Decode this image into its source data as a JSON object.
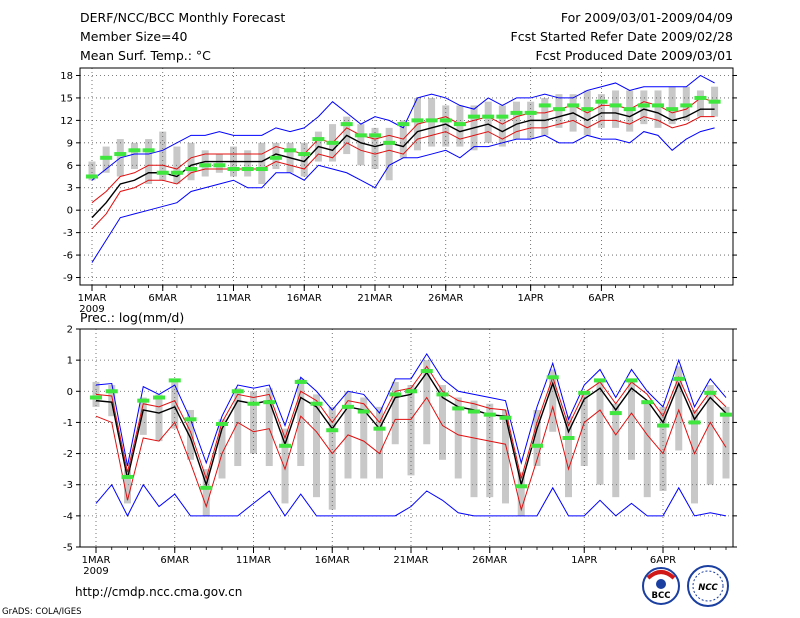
{
  "header": {
    "title": "DERF/NCC/BCC Monthly Forecast",
    "member_size": "Member Size=40",
    "variable": "Mean Surf. Temp.: °C",
    "period": "For 2009/03/01-2009/04/09",
    "start_date": "Fcst Started Refer Date 2009/02/28",
    "produced_date": "Fcst Produced Date 2009/03/01"
  },
  "precip_label": "Prec.: log(mm/d)",
  "footer": {
    "url": "http://cmdp.ncc.cma.gov.cn",
    "grads": "GrADS: COLA/IGES",
    "logo_bcc": "BCC",
    "logo_ncc": "NCC"
  },
  "colors": {
    "blue": "#0000ff",
    "red": "#e01010",
    "black": "#000000",
    "green": "#3ee63e",
    "box": "#c8c8c8",
    "grid": "#555555"
  },
  "chart_data": [
    {
      "type": "line",
      "name": "temperature",
      "title": "Mean Surf. Temp.: °C",
      "xlabel": "",
      "ylabel": "°C",
      "x_tick_labels": [
        "1MAR",
        "6MAR",
        "11MAR",
        "16MAR",
        "21MAR",
        "26MAR",
        "1APR",
        "6APR"
      ],
      "x_tick_days": [
        1,
        6,
        11,
        16,
        21,
        26,
        32,
        37
      ],
      "year_label": "2009",
      "xlim": [
        0,
        41
      ],
      "ylim": [
        -10,
        19
      ],
      "yticks": [
        -9,
        -6,
        -3,
        0,
        3,
        6,
        9,
        12,
        15,
        18
      ],
      "grid": true,
      "series": [
        {
          "name": "ensemble mean",
          "color": "black",
          "values": [
            -1,
            1,
            3.5,
            4,
            5,
            5,
            4.5,
            6,
            6.5,
            6.5,
            6.5,
            6.5,
            6.5,
            7.5,
            7,
            6.5,
            8.5,
            8,
            10,
            9,
            8.5,
            9,
            8.5,
            10.5,
            11,
            11.5,
            10.5,
            11,
            11.5,
            10.5,
            11.5,
            12,
            12,
            12.5,
            13,
            12,
            13,
            13,
            12.5,
            13.5,
            13,
            12,
            12.5,
            13.5,
            13.5
          ]
        },
        {
          "name": "upper red",
          "color": "red",
          "values": [
            1,
            2.5,
            4.5,
            5,
            6,
            6,
            5.5,
            7,
            7.5,
            7.5,
            7.5,
            7.5,
            7.5,
            8.5,
            8,
            7.5,
            9.5,
            9,
            11,
            10,
            9.5,
            10,
            9.5,
            11.5,
            12,
            12.5,
            11.5,
            12,
            12.5,
            11.5,
            12.5,
            13,
            13,
            13.5,
            14,
            13,
            14,
            14,
            13.5,
            14.5,
            14,
            13,
            13.5,
            15,
            14.5
          ]
        },
        {
          "name": "lower red",
          "color": "red",
          "values": [
            -2.5,
            -0.5,
            2.5,
            3,
            4,
            4,
            3.5,
            5,
            5.5,
            5.5,
            5.5,
            5.5,
            5.5,
            6.5,
            6,
            5.5,
            7.5,
            7,
            9,
            8,
            7.5,
            8,
            7.5,
            9.5,
            10,
            10.5,
            9.5,
            10,
            10.5,
            9.5,
            10.5,
            11,
            11,
            11.5,
            12,
            11,
            12,
            12,
            11.5,
            12.5,
            12,
            11,
            11.5,
            12.5,
            12.5
          ]
        },
        {
          "name": "max blue",
          "color": "blue",
          "values": [
            4,
            5.5,
            7,
            7.5,
            7.5,
            8,
            9,
            10,
            10,
            10.5,
            10,
            10,
            10,
            11,
            10.5,
            11,
            12.5,
            14.5,
            13,
            11.5,
            12.5,
            12,
            11,
            15,
            15.5,
            15,
            14,
            13.5,
            15,
            14,
            15,
            15,
            15.5,
            15,
            15,
            16,
            16.5,
            17,
            16,
            16.5,
            16.5,
            16.5,
            16.5,
            18,
            17
          ]
        },
        {
          "name": "min blue",
          "color": "blue",
          "values": [
            -7,
            -4,
            -1,
            -0.5,
            0,
            0.5,
            1,
            2.5,
            3,
            3.5,
            4,
            3,
            3,
            5,
            5,
            4,
            6,
            5.5,
            5,
            4,
            3,
            6,
            7,
            7,
            7.5,
            8,
            7,
            8.5,
            8.5,
            9,
            9.5,
            9.5,
            10,
            9,
            9,
            10,
            9.5,
            9.5,
            9,
            10.5,
            10,
            8,
            9.5,
            10.5,
            11
          ]
        }
      ],
      "observed": [
        4.5,
        7,
        7.5,
        8,
        8,
        5,
        5,
        5.5,
        6,
        6,
        5.5,
        5.5,
        5.5,
        7,
        8,
        7.5,
        9.5,
        9,
        11.5,
        10,
        10,
        9,
        11.5,
        12,
        12,
        12,
        11.5,
        12.5,
        12.5,
        12.5,
        13,
        13,
        14,
        13.5,
        14,
        13.5,
        14.5,
        14,
        13.5,
        14,
        14,
        13.5,
        14,
        15,
        14.5
      ],
      "box_ranges": [
        [
          4,
          6.5
        ],
        [
          5,
          8.5
        ],
        [
          4.5,
          9.5
        ],
        [
          5.5,
          9
        ],
        [
          3.5,
          9.5
        ],
        [
          4,
          10.5
        ],
        [
          3.5,
          8.5
        ],
        [
          4,
          9
        ],
        [
          4.5,
          8
        ],
        [
          5,
          7.5
        ],
        [
          4.5,
          8.5
        ],
        [
          4.5,
          8
        ],
        [
          3.5,
          9
        ],
        [
          5.5,
          9
        ],
        [
          5,
          9
        ],
        [
          4.5,
          9
        ],
        [
          6.5,
          10.5
        ],
        [
          6.5,
          11.5
        ],
        [
          7.5,
          12.5
        ],
        [
          6,
          11.5
        ],
        [
          5.5,
          11
        ],
        [
          4,
          11
        ],
        [
          7,
          12
        ],
        [
          8,
          15
        ],
        [
          8.5,
          15
        ],
        [
          8.5,
          14
        ],
        [
          8.5,
          14
        ],
        [
          8,
          14
        ],
        [
          9,
          14.5
        ],
        [
          8.5,
          14
        ],
        [
          9.5,
          14.5
        ],
        [
          9.5,
          14.5
        ],
        [
          10,
          15
        ],
        [
          11,
          15.5
        ],
        [
          10.5,
          15.5
        ],
        [
          10,
          16
        ],
        [
          11,
          15.5
        ],
        [
          11,
          16
        ],
        [
          10.5,
          16
        ],
        [
          11.5,
          16
        ],
        [
          11,
          16
        ],
        [
          11.5,
          16.5
        ],
        [
          12,
          16.5
        ],
        [
          12.5,
          16
        ],
        [
          12.5,
          16.5
        ]
      ]
    },
    {
      "type": "line",
      "name": "precipitation",
      "title": "Prec.: log(mm/d)",
      "xlabel": "",
      "ylabel": "log(mm/d)",
      "x_tick_labels": [
        "1MAR",
        "6MAR",
        "11MAR",
        "16MAR",
        "21MAR",
        "26MAR",
        "1APR",
        "6APR"
      ],
      "x_tick_days": [
        1,
        6,
        11,
        16,
        21,
        26,
        32,
        37
      ],
      "year_label": "2009",
      "xlim": [
        0,
        41
      ],
      "ylim": [
        -5,
        2
      ],
      "yticks": [
        -5,
        -4,
        -3,
        -2,
        -1,
        0,
        1,
        2
      ],
      "grid": true,
      "series": [
        {
          "name": "ensemble mean",
          "color": "black",
          "values": [
            -0.3,
            -0.35,
            -2.8,
            -0.6,
            -0.7,
            -0.5,
            -1.5,
            -3.0,
            -1.2,
            -0.3,
            -0.4,
            -0.3,
            -1.7,
            -0.2,
            -0.5,
            -1.2,
            -0.5,
            -0.6,
            -1.2,
            -0.2,
            -0.1,
            0.6,
            -0.2,
            -0.5,
            -0.6,
            -0.75,
            -0.8,
            -3.0,
            -1.2,
            0.25,
            -1.3,
            -0.25,
            0.1,
            -0.6,
            0.1,
            -0.3,
            -1.0,
            0.25,
            -0.9,
            -0.2,
            -0.7
          ]
        },
        {
          "name": "upper red",
          "color": "red",
          "values": [
            -0.1,
            -0.15,
            -2.6,
            -0.4,
            -0.5,
            -0.3,
            -1.3,
            -2.8,
            -1.0,
            -0.1,
            -0.2,
            -0.1,
            -1.5,
            0.0,
            -0.3,
            -1.0,
            -0.3,
            -0.4,
            -1.0,
            0.0,
            0.1,
            0.8,
            0.0,
            -0.3,
            -0.4,
            -0.55,
            -0.6,
            -2.8,
            -1.0,
            0.45,
            -1.1,
            -0.05,
            0.3,
            -0.4,
            0.3,
            -0.1,
            -0.8,
            0.45,
            -0.7,
            0.0,
            -0.5
          ]
        },
        {
          "name": "lower red",
          "color": "red",
          "values": [
            -0.8,
            -1.0,
            -3.5,
            -1.5,
            -1.6,
            -1.0,
            -2.3,
            -3.7,
            -2.0,
            -1.0,
            -1.3,
            -1.2,
            -2.5,
            -0.8,
            -1.3,
            -2.0,
            -1.4,
            -1.6,
            -2.0,
            -0.9,
            -0.9,
            -0.2,
            -1.1,
            -1.4,
            -1.5,
            -1.6,
            -1.7,
            -3.8,
            -2.2,
            -0.5,
            -2.5,
            -1.0,
            -0.6,
            -1.4,
            -0.7,
            -1.4,
            -2.0,
            -0.6,
            -2.0,
            -1.0,
            -1.8
          ]
        },
        {
          "name": "max blue",
          "color": "blue",
          "values": [
            0.2,
            0.25,
            -2.4,
            0.15,
            -0.1,
            0.2,
            -0.9,
            -2.3,
            -0.8,
            0.2,
            0.1,
            0.2,
            -1.1,
            0.45,
            0.0,
            -0.6,
            0.0,
            -0.1,
            -0.7,
            0.4,
            0.4,
            1.2,
            0.4,
            0.0,
            -0.1,
            -0.2,
            -0.3,
            -2.3,
            -0.5,
            0.9,
            -0.9,
            0.2,
            0.7,
            -0.2,
            0.7,
            0.0,
            -0.5,
            1.0,
            -0.5,
            0.4,
            -0.2
          ]
        },
        {
          "name": "min blue",
          "color": "blue",
          "values": [
            -3.6,
            -3.0,
            -4.0,
            -3.0,
            -3.7,
            -3.3,
            -4.0,
            -4.0,
            -4.0,
            -4.0,
            -3.6,
            -3.2,
            -4.0,
            -3.3,
            -4.0,
            -4.0,
            -4.0,
            -4.0,
            -4.0,
            -4.0,
            -3.7,
            -3.2,
            -3.5,
            -3.9,
            -4.0,
            -4.0,
            -4.0,
            -4.0,
            -4.0,
            -3.1,
            -4.0,
            -4.0,
            -3.5,
            -4.0,
            -3.6,
            -4.0,
            -4.0,
            -3.1,
            -4.0,
            -3.9,
            -4.0
          ]
        }
      ],
      "observed": [
        -0.2,
        0.0,
        -2.75,
        -0.3,
        -0.2,
        0.35,
        -0.9,
        -3.1,
        -1.05,
        0.0,
        -0.4,
        -0.35,
        -1.75,
        0.3,
        -0.4,
        -1.25,
        -0.5,
        -0.65,
        -1.2,
        -0.1,
        0.0,
        0.65,
        -0.1,
        -0.55,
        -0.65,
        -0.75,
        -0.85,
        -3.05,
        -1.75,
        0.45,
        -1.5,
        -0.05,
        0.35,
        -0.7,
        0.35,
        -0.35,
        -1.1,
        0.4,
        -1.0,
        -0.05,
        -0.75
      ],
      "box_ranges": [
        [
          -0.5,
          0.3
        ],
        [
          -0.8,
          0.2
        ],
        [
          -3.6,
          -2.5
        ],
        [
          -1.4,
          -0.2
        ],
        [
          -1.6,
          -0.1
        ],
        [
          -1.2,
          0.4
        ],
        [
          -2.2,
          -0.6
        ],
        [
          -4.0,
          -2.5
        ],
        [
          -2.8,
          -0.9
        ],
        [
          -2.4,
          0.1
        ],
        [
          -2.0,
          0.0
        ],
        [
          -2.4,
          0.1
        ],
        [
          -3.6,
          -1.2
        ],
        [
          -2.4,
          0.4
        ],
        [
          -3.4,
          -0.1
        ],
        [
          -3.8,
          -0.5
        ],
        [
          -2.8,
          0.0
        ],
        [
          -2.8,
          -0.2
        ],
        [
          -2.8,
          -0.5
        ],
        [
          -1.7,
          0.3
        ],
        [
          -2.7,
          0.2
        ],
        [
          -1.7,
          1.0
        ],
        [
          -2.2,
          0.2
        ],
        [
          -2.8,
          -0.2
        ],
        [
          -3.4,
          -0.3
        ],
        [
          -3.4,
          -0.4
        ],
        [
          -3.6,
          -0.6
        ],
        [
          -4.0,
          -2.6
        ],
        [
          -2.4,
          -0.6
        ],
        [
          -1.3,
          0.7
        ],
        [
          -3.4,
          -0.8
        ],
        [
          -2.4,
          0.0
        ],
        [
          -3.0,
          0.4
        ],
        [
          -3.4,
          -0.4
        ],
        [
          -2.2,
          0.4
        ],
        [
          -3.4,
          -0.3
        ],
        [
          -3.2,
          -0.5
        ],
        [
          -1.9,
          0.8
        ],
        [
          -3.6,
          -0.6
        ],
        [
          -3.0,
          0.2
        ],
        [
          -2.8,
          -0.5
        ]
      ]
    }
  ]
}
